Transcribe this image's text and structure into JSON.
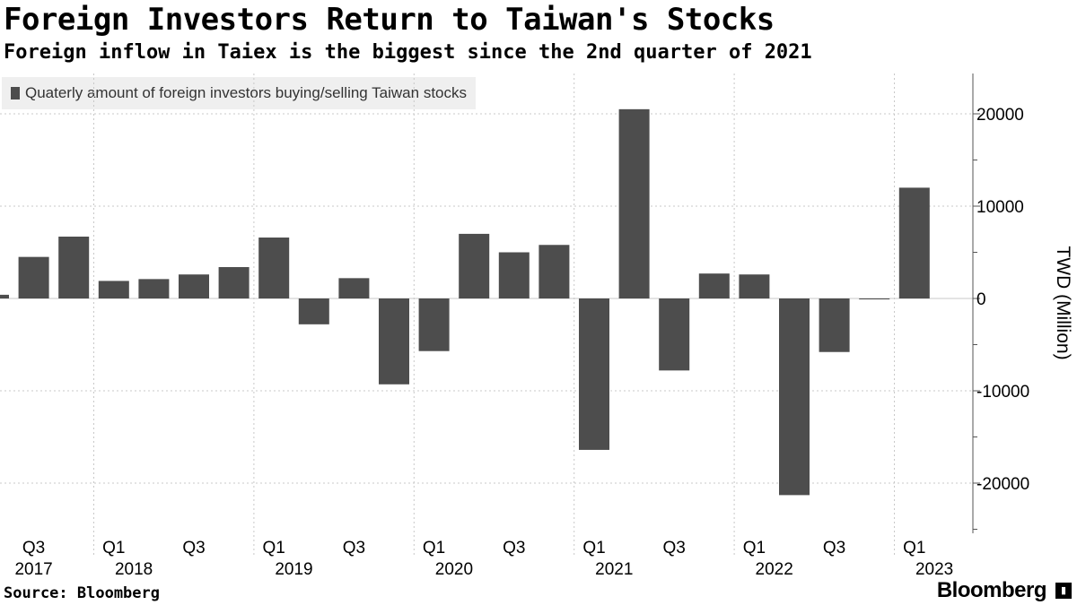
{
  "title": "Foreign Investors Return to Taiwan's Stocks",
  "subtitle": "Foreign inflow in Taiex is the biggest since the 2nd quarter of 2021",
  "legend": {
    "label": "Quaterly amount of foreign investors buying/selling Taiwan stocks"
  },
  "footer": {
    "source": "Source: Bloomberg",
    "brand": "Bloomberg"
  },
  "colors": {
    "bar": "#4d4d4d",
    "grid": "#c8c8c8",
    "axis": "#555555"
  },
  "chart_data": {
    "type": "bar",
    "title": "Foreign Investors Return to Taiwan's Stocks",
    "ylabel": "TWD (Million)",
    "xlabel": "",
    "ylim": [
      -25000,
      25000
    ],
    "yticks": [
      20000,
      10000,
      0,
      -10000,
      -20000
    ],
    "categories": [
      "Q2 2017",
      "Q3 2017",
      "Q4 2017",
      "Q1 2018",
      "Q2 2018",
      "Q3 2018",
      "Q4 2018",
      "Q1 2019",
      "Q2 2019",
      "Q3 2019",
      "Q4 2019",
      "Q1 2020",
      "Q2 2020",
      "Q3 2020",
      "Q4 2020",
      "Q1 2021",
      "Q2 2021",
      "Q3 2021",
      "Q4 2021",
      "Q1 2022",
      "Q2 2022",
      "Q3 2022",
      "Q4 2022",
      "Q1 2023"
    ],
    "values": [
      400,
      4500,
      6700,
      1900,
      2100,
      2600,
      3400,
      6600,
      -2800,
      2200,
      -9300,
      -5700,
      7000,
      5000,
      5800,
      -16400,
      20500,
      -7800,
      2700,
      2600,
      -21300,
      -5800,
      -100,
      12000
    ],
    "x_tick_labels": [
      {
        "index": 1,
        "quarter": "Q3",
        "year": "2017"
      },
      {
        "index": 3,
        "quarter": "Q1",
        "year": "2018"
      },
      {
        "index": 5,
        "quarter": "Q3",
        "year": ""
      },
      {
        "index": 7,
        "quarter": "Q1",
        "year": "2019"
      },
      {
        "index": 9,
        "quarter": "Q3",
        "year": ""
      },
      {
        "index": 11,
        "quarter": "Q1",
        "year": "2020"
      },
      {
        "index": 13,
        "quarter": "Q3",
        "year": ""
      },
      {
        "index": 15,
        "quarter": "Q1",
        "year": "2021"
      },
      {
        "index": 17,
        "quarter": "Q3",
        "year": ""
      },
      {
        "index": 19,
        "quarter": "Q1",
        "year": "2022"
      },
      {
        "index": 21,
        "quarter": "Q3",
        "year": ""
      },
      {
        "index": 23,
        "quarter": "Q1",
        "year": "2023"
      }
    ],
    "year_boundaries_after_index": [
      2,
      6,
      10,
      14,
      18,
      22
    ]
  }
}
